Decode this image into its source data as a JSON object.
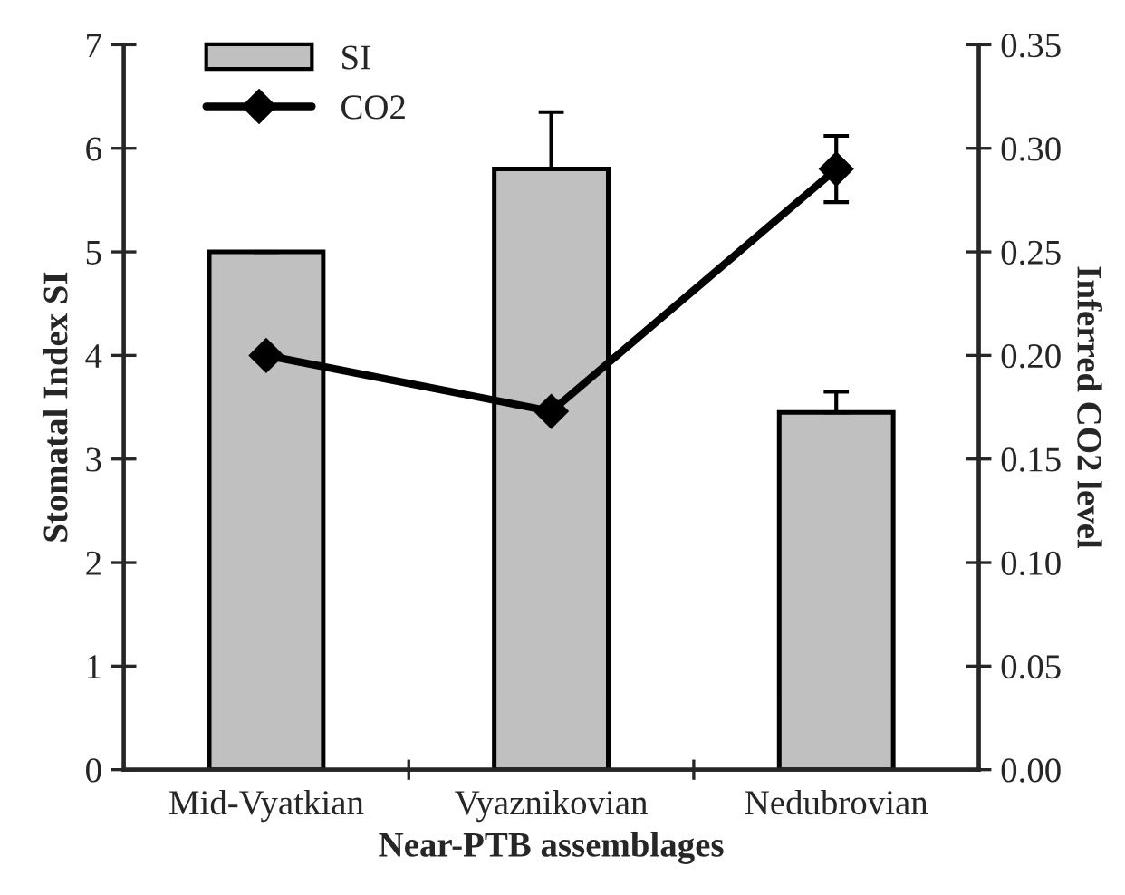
{
  "chart_data": {
    "type": "bar",
    "xlabel": "Near-PTB assemblages",
    "ylabel": "Stomatal Index SI",
    "y2label": "Inferred CO2 level",
    "categories": [
      "Mid-Vyatkian",
      "Vyaznikovian",
      "Nedubrovian"
    ],
    "series": [
      {
        "name": "SI",
        "color": "#c0c0c0",
        "values": [
          5.0,
          5.8,
          3.45
        ],
        "errors": [
          null,
          [
            5.8,
            6.35
          ],
          [
            3.45,
            3.65
          ]
        ]
      },
      {
        "name": "CO2",
        "type": "line",
        "axis": "y2",
        "color": "#000000",
        "marker": "diamond",
        "values": [
          0.2,
          0.173,
          0.29
        ],
        "errors": [
          null,
          null,
          0.016
        ]
      }
    ],
    "ylim": [
      0,
      7
    ],
    "yticks": [
      0,
      1,
      2,
      3,
      4,
      5,
      6,
      7
    ],
    "y2lim": [
      0,
      0.35
    ],
    "y2ticks": [
      {
        "value": 0,
        "label": "0.00"
      },
      {
        "value": 0.05,
        "label": "0.05"
      },
      {
        "value": 0.1,
        "label": "0.10"
      },
      {
        "value": 0.15,
        "label": "0.15"
      },
      {
        "value": 0.2,
        "label": "0.20"
      },
      {
        "value": 0.25,
        "label": "0.25"
      },
      {
        "value": 0.3,
        "label": "0.30"
      },
      {
        "value": 0.35,
        "label": "0.35"
      }
    ],
    "grid": false,
    "legend": "top left"
  }
}
